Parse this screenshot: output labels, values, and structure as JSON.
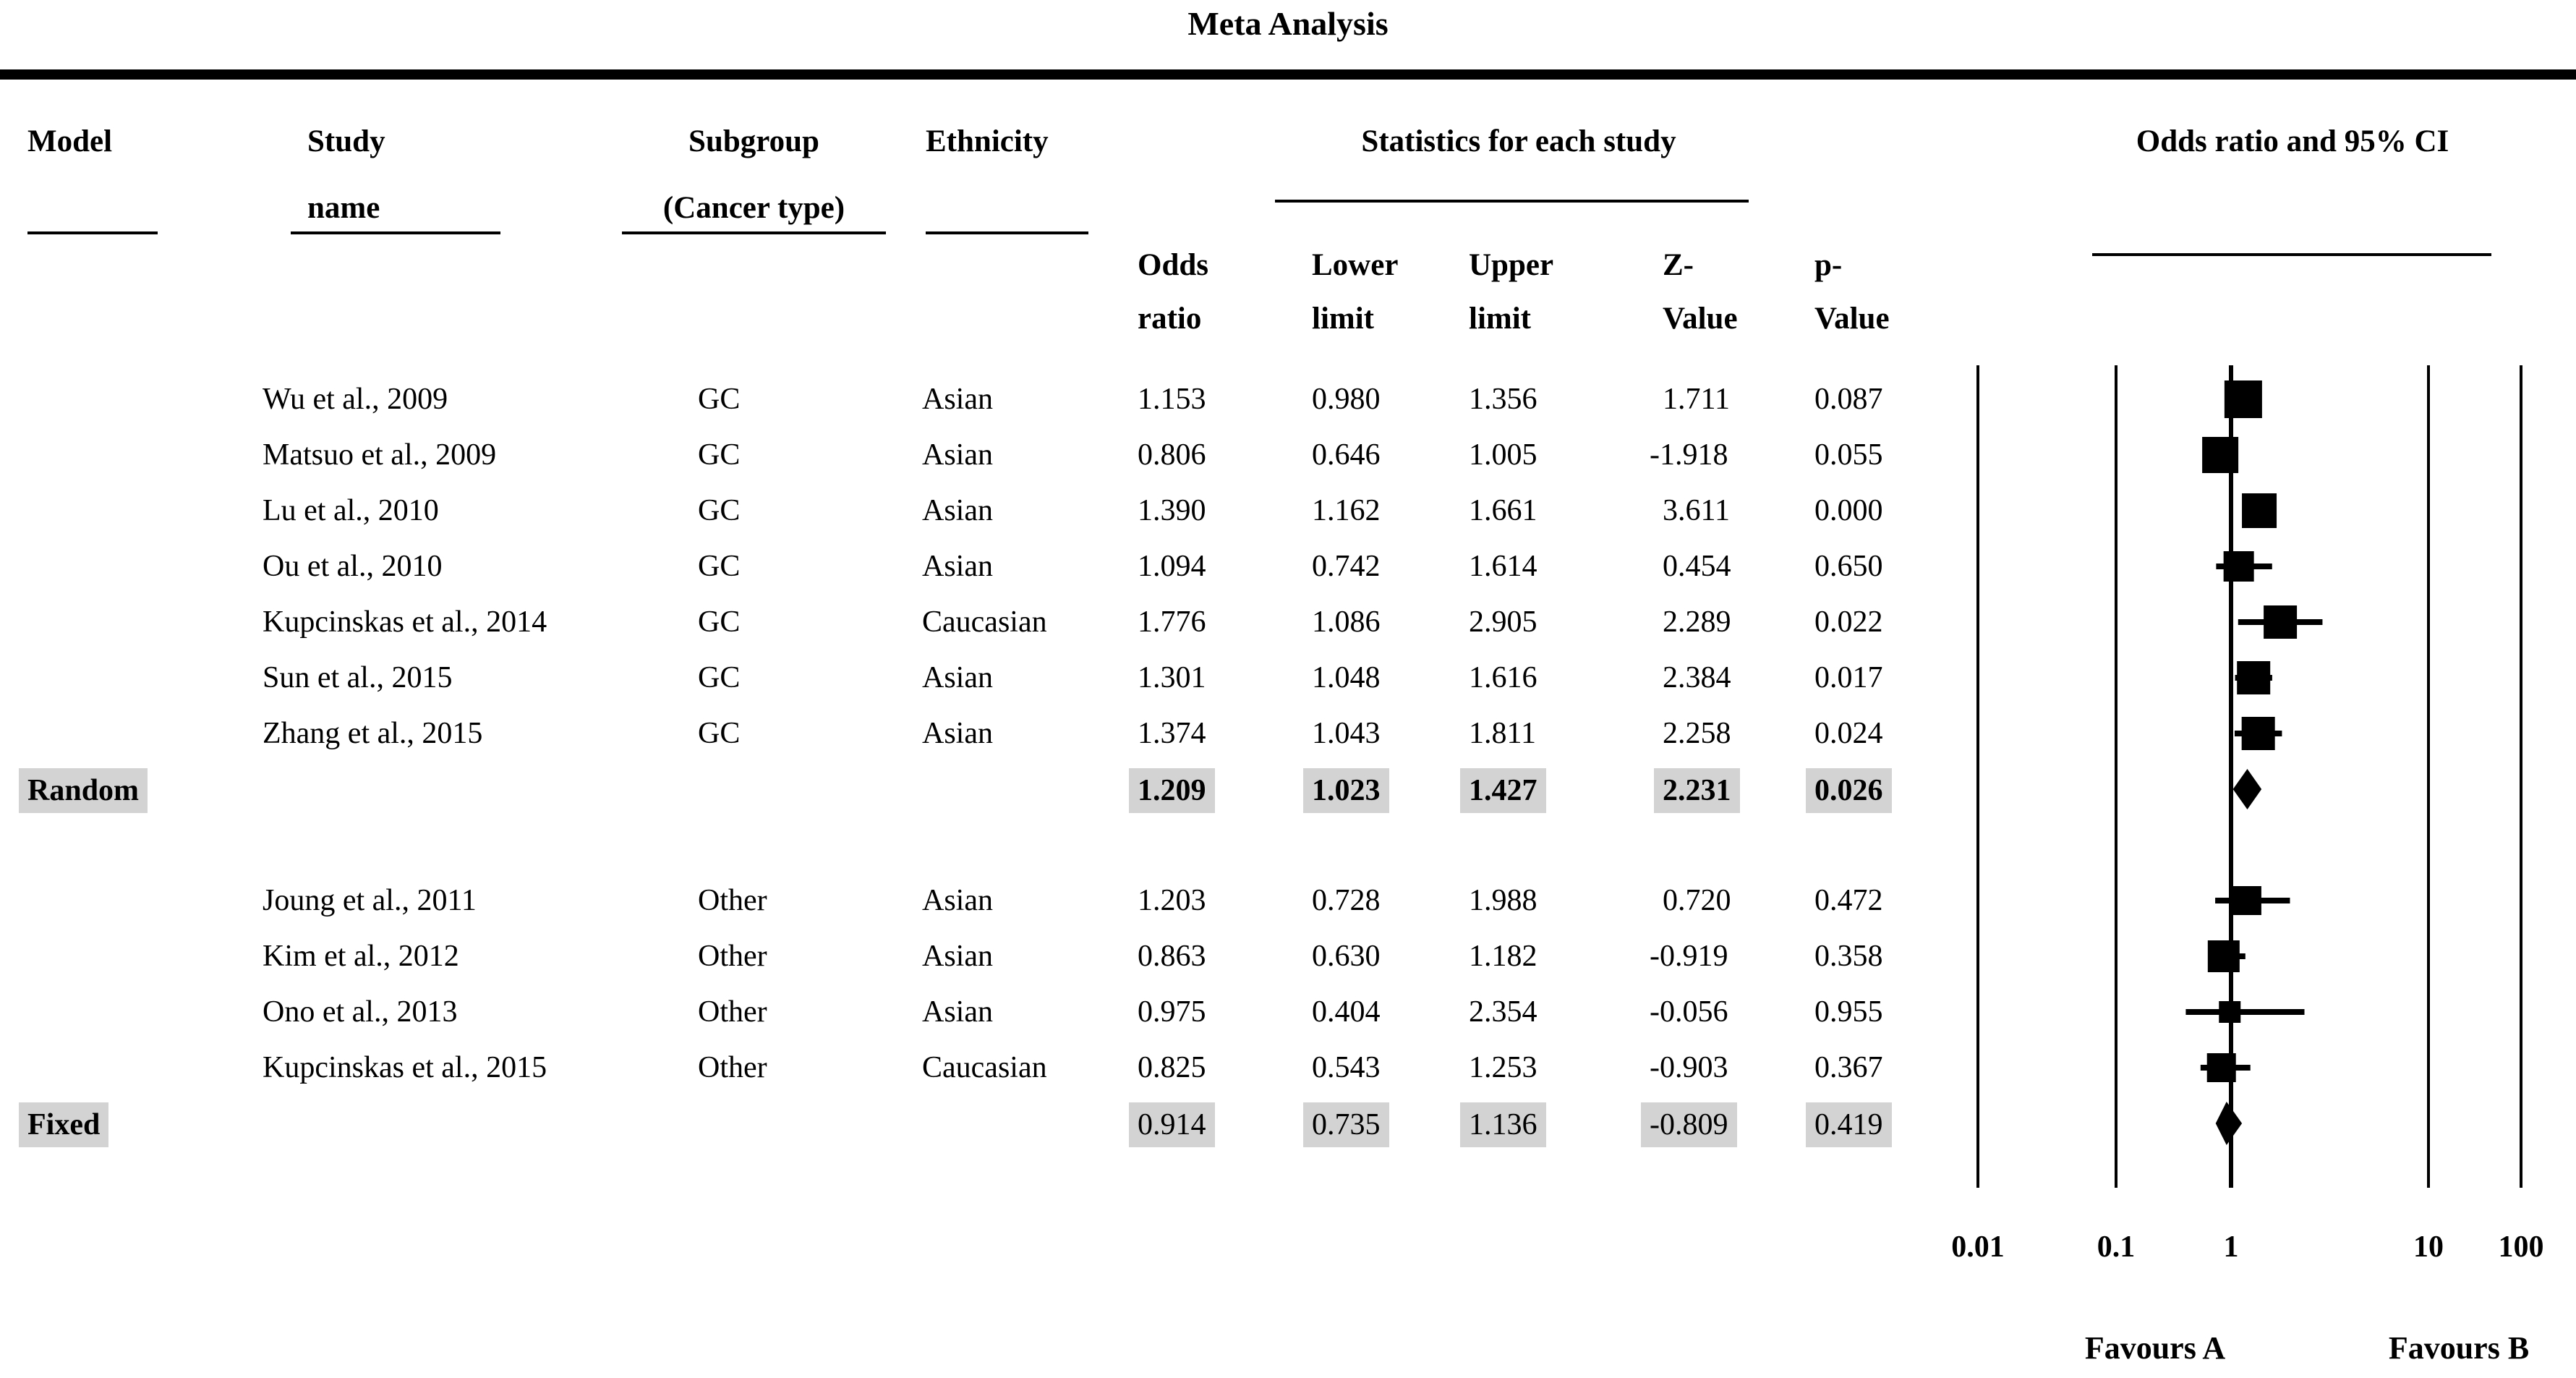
{
  "title": "Meta Analysis",
  "headers": {
    "model": "Model",
    "study": [
      "Study",
      "name"
    ],
    "subgroup": [
      "Subgroup",
      "(Cancer type)"
    ],
    "ethnicity": "Ethnicity",
    "stats_group": "Statistics for each study",
    "ci_group": "Odds ratio and 95% CI",
    "stat_cols": [
      [
        "Odds",
        "ratio"
      ],
      [
        "Lower",
        "limit"
      ],
      [
        "Upper",
        "limit"
      ],
      [
        "Z-",
        "Value"
      ],
      [
        "p-",
        "Value"
      ]
    ]
  },
  "axis": {
    "scale": "log",
    "ticks": [
      {
        "label": "0.01",
        "value": 0.01
      },
      {
        "label": "0.1",
        "value": 0.1
      },
      {
        "label": "1",
        "value": 1
      },
      {
        "label": "10",
        "value": 10
      },
      {
        "label": "100",
        "value": 100
      }
    ],
    "favours_a": "Favours A",
    "favours_b": "Favours B"
  },
  "colors": {
    "highlight": "#d3d3d3",
    "ink": "#000000"
  },
  "chart_data": {
    "type": "forest",
    "effect_measure": "Odds ratio",
    "ci_level": "95%",
    "rows": [
      {
        "type": "study",
        "study": "Wu et al., 2009",
        "subgroup": "GC",
        "ethnicity": "Asian",
        "or": "1.153",
        "lower": "0.980",
        "upper": "1.356",
        "z": "1.711",
        "p": "0.087",
        "marker_size": 52
      },
      {
        "type": "study",
        "study": "Matsuo et al., 2009",
        "subgroup": "GC",
        "ethnicity": "Asian",
        "or": "0.806",
        "lower": "0.646",
        "upper": "1.005",
        "z": "-1.918",
        "p": "0.055",
        "marker_size": 50
      },
      {
        "type": "study",
        "study": "Lu et al., 2010",
        "subgroup": "GC",
        "ethnicity": "Asian",
        "or": "1.390",
        "lower": "1.162",
        "upper": "1.661",
        "z": "3.611",
        "p": "0.000",
        "marker_size": 48
      },
      {
        "type": "study",
        "study": "Ou et al., 2010",
        "subgroup": "GC",
        "ethnicity": "Asian",
        "or": "1.094",
        "lower": "0.742",
        "upper": "1.614",
        "z": "0.454",
        "p": "0.650",
        "marker_size": 42
      },
      {
        "type": "study",
        "study": "Kupcinskas et al., 2014",
        "subgroup": "GC",
        "ethnicity": "Caucasian",
        "or": "1.776",
        "lower": "1.086",
        "upper": "2.905",
        "z": "2.289",
        "p": "0.022",
        "marker_size": 46
      },
      {
        "type": "study",
        "study": "Sun et al., 2015",
        "subgroup": "GC",
        "ethnicity": "Asian",
        "or": "1.301",
        "lower": "1.048",
        "upper": "1.616",
        "z": "2.384",
        "p": "0.017",
        "marker_size": 46
      },
      {
        "type": "study",
        "study": "Zhang et al., 2015",
        "subgroup": "GC",
        "ethnicity": "Asian",
        "or": "1.374",
        "lower": "1.043",
        "upper": "1.811",
        "z": "2.258",
        "p": "0.024",
        "marker_size": 46
      },
      {
        "type": "summary",
        "model": "Random",
        "or": "1.209",
        "lower": "1.023",
        "upper": "1.427",
        "z": "2.231",
        "p": "0.026",
        "bold_values": true,
        "diamond_half_height": 28
      },
      {
        "type": "study",
        "study": "Joung et al., 2011",
        "subgroup": "Other",
        "ethnicity": "Asian",
        "or": "1.203",
        "lower": "0.728",
        "upper": "1.988",
        "z": "0.720",
        "p": "0.472",
        "marker_size": 40
      },
      {
        "type": "study",
        "study": "Kim et al., 2012",
        "subgroup": "Other",
        "ethnicity": "Asian",
        "or": "0.863",
        "lower": "0.630",
        "upper": "1.182",
        "z": "-0.919",
        "p": "0.358",
        "marker_size": 44
      },
      {
        "type": "study",
        "study": "Ono et al., 2013",
        "subgroup": "Other",
        "ethnicity": "Asian",
        "or": "0.975",
        "lower": "0.404",
        "upper": "2.354",
        "z": "-0.056",
        "p": "0.955",
        "marker_size": 30
      },
      {
        "type": "study",
        "study": "Kupcinskas et al., 2015",
        "subgroup": "Other",
        "ethnicity": "Caucasian",
        "or": "0.825",
        "lower": "0.543",
        "upper": "1.253",
        "z": "-0.903",
        "p": "0.367",
        "marker_size": 40
      },
      {
        "type": "summary",
        "model": "Fixed",
        "or": "0.914",
        "lower": "0.735",
        "upper": "1.136",
        "z": "-0.809",
        "p": "0.419",
        "bold_values": false,
        "diamond_half_height": 30
      }
    ]
  }
}
